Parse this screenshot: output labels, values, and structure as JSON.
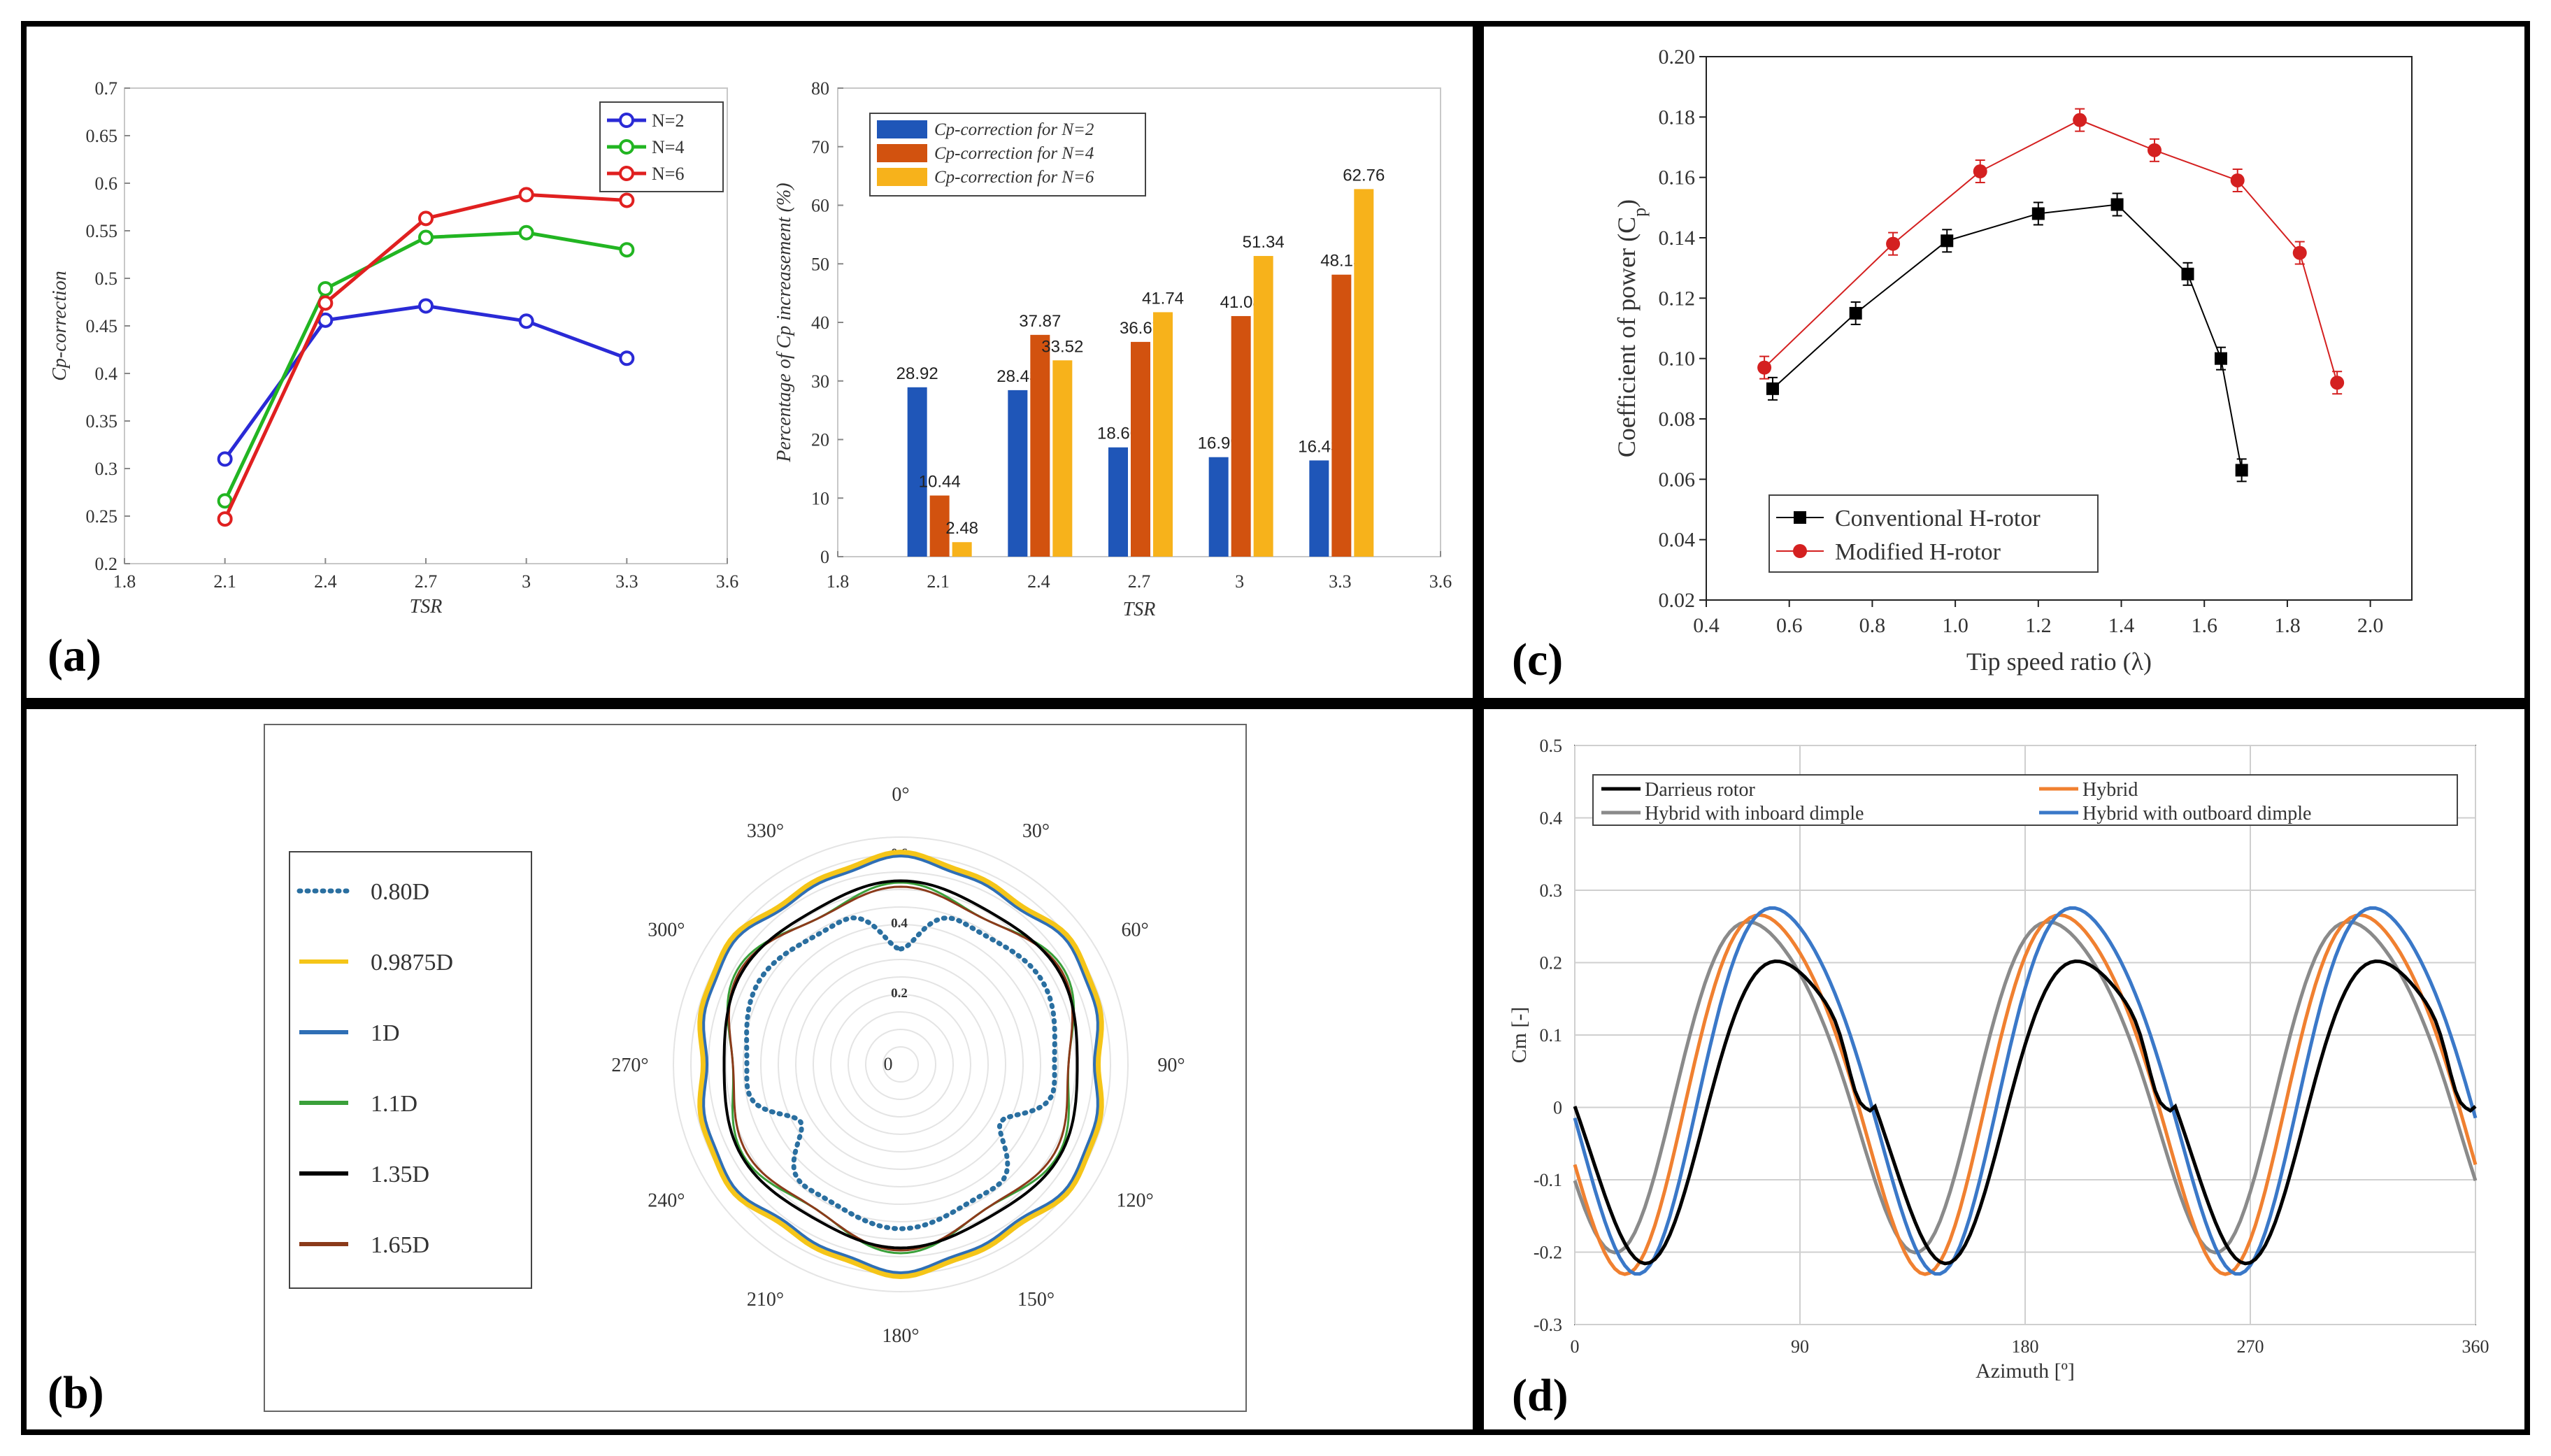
{
  "panels": {
    "a": "(a)",
    "b": "(b)",
    "c": "(c)",
    "d": "(d)"
  },
  "colors": {
    "n2": "#2a2ad6",
    "n4": "#22b522",
    "n6": "#e02020",
    "bar_n2": "#1f56b8",
    "bar_n4": "#d2520f",
    "bar_n6": "#f7b21b",
    "conv": "#000000",
    "mod": "#d42020",
    "darrieus": "#000000",
    "hybrid": "#f08030",
    "inboard": "#8a8a8a",
    "outboard": "#3a78c8",
    "p080": "#2a6fa0",
    "p09875": "#f5c518",
    "p1": "#2f6fb5",
    "p11": "#3aa03a",
    "p135": "#000000",
    "p165": "#8b3a1a"
  },
  "chart_data": [
    {
      "id": "a1",
      "type": "line",
      "xlabel": "TSR",
      "ylabel": "Cp-correction",
      "xlim": [
        1.8,
        3.6
      ],
      "ylim": [
        0.2,
        0.7
      ],
      "xticks": [
        "1.8",
        "2.1",
        "2.4",
        "2.7",
        "3",
        "3.3",
        "3.6"
      ],
      "yticks": [
        "0.2",
        "0.25",
        "0.3",
        "0.35",
        "0.4",
        "0.45",
        "0.5",
        "0.55",
        "0.6",
        "0.65",
        "0.7"
      ],
      "x": [
        2.1,
        2.4,
        2.7,
        3.0,
        3.3
      ],
      "series": [
        {
          "name": "N=2",
          "values": [
            0.31,
            0.456,
            0.471,
            0.455,
            0.416
          ]
        },
        {
          "name": "N=4",
          "values": [
            0.266,
            0.489,
            0.543,
            0.548,
            0.53
          ]
        },
        {
          "name": "N=6",
          "values": [
            0.247,
            0.474,
            0.563,
            0.588,
            0.582
          ]
        }
      ]
    },
    {
      "id": "a2",
      "type": "bar",
      "xlabel": "TSR",
      "ylabel": "Percentage of Cp increasement (%)",
      "xlim": [
        1.8,
        3.6
      ],
      "ylim": [
        0,
        80
      ],
      "xticks": [
        "1.8",
        "2.1",
        "2.4",
        "2.7",
        "3",
        "3.3",
        "3.6"
      ],
      "yticks": [
        "0",
        "10",
        "20",
        "30",
        "40",
        "50",
        "60",
        "70",
        "80"
      ],
      "categories": [
        "2.1",
        "2.4",
        "2.7",
        "3",
        "3.3"
      ],
      "series": [
        {
          "name": "Cp-correction for N=2",
          "values": [
            28.92,
            28.43,
            18.66,
            16.99,
            16.43
          ],
          "labels": [
            "28.92",
            "28.43",
            "18.66",
            "16.99",
            "16.43"
          ]
        },
        {
          "name": "Cp-correction for N=4",
          "values": [
            10.44,
            37.87,
            36.67,
            41.08,
            48.15
          ],
          "labels": [
            "10.44",
            "37.87",
            "36.67",
            "41.08",
            "48.15"
          ]
        },
        {
          "name": "Cp-correction for N=6",
          "values": [
            2.48,
            33.52,
            41.74,
            51.34,
            62.76
          ],
          "labels": [
            "2.48",
            "33.52",
            "41.74",
            "51.34",
            "62.76"
          ]
        }
      ]
    },
    {
      "id": "b",
      "type": "polar",
      "angle_ticks": [
        "0°",
        "30°",
        "60°",
        "90°",
        "120°",
        "150°",
        "180°",
        "210°",
        "240°",
        "270°",
        "300°",
        "330°"
      ],
      "radial_ticks": [
        "0",
        "0.2",
        "0.4",
        "0.6"
      ],
      "rmax": 0.65,
      "series": [
        {
          "name": "0.80D"
        },
        {
          "name": "0.9875D"
        },
        {
          "name": "1D"
        },
        {
          "name": "1.1D"
        },
        {
          "name": "1.35D"
        },
        {
          "name": "1.65D"
        }
      ]
    },
    {
      "id": "c",
      "type": "line",
      "xlabel": "Tip speed ratio (λ)",
      "ylabel": "Coefficient of power (C",
      "ylabel_sub": "p",
      "ylabel_end": ")",
      "xlim": [
        0.4,
        2.1
      ],
      "ylim": [
        0.02,
        0.2
      ],
      "xticks": [
        "0.4",
        "0.6",
        "0.8",
        "1.0",
        "1.2",
        "1.4",
        "1.6",
        "1.8",
        "2.0"
      ],
      "yticks": [
        "0.02",
        "0.04",
        "0.06",
        "0.08",
        "0.10",
        "0.12",
        "0.14",
        "0.16",
        "0.18",
        "0.20"
      ],
      "series": [
        {
          "name": "Conventional H-rotor",
          "x": [
            0.56,
            0.76,
            0.98,
            1.2,
            1.39,
            1.56,
            1.64,
            1.69
          ],
          "values": [
            0.09,
            0.115,
            0.139,
            0.148,
            0.151,
            0.128,
            0.1,
            0.063
          ]
        },
        {
          "name": "Modified H-rotor",
          "x": [
            0.54,
            0.85,
            1.06,
            1.3,
            1.48,
            1.68,
            1.83,
            1.92
          ],
          "values": [
            0.097,
            0.138,
            0.162,
            0.179,
            0.169,
            0.159,
            0.135,
            0.092
          ]
        }
      ]
    },
    {
      "id": "d",
      "type": "line",
      "xlabel": "Azimuth [º]",
      "ylabel": "Cm [-]",
      "xlim": [
        0,
        360
      ],
      "ylim": [
        -0.3,
        0.5
      ],
      "xticks": [
        "0",
        "90",
        "180",
        "270",
        "360"
      ],
      "yticks": [
        "-0.3",
        "-0.2",
        "-0.1",
        "0",
        "0.1",
        "0.2",
        "0.3",
        "0.4",
        "0.5"
      ],
      "series": [
        {
          "name": "Darrieus rotor"
        },
        {
          "name": "Hybrid"
        },
        {
          "name": "Hybrid with inboard dimple"
        },
        {
          "name": "Hybrid with outboard dimple"
        }
      ]
    }
  ]
}
